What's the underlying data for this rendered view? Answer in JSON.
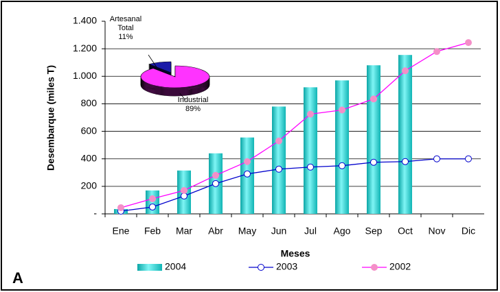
{
  "label": "A",
  "chart_data": [
    {
      "type": "bar",
      "ylabel": "Desembarque (miles T)",
      "xlabel": "Meses",
      "categories": [
        "Ene",
        "Feb",
        "Mar",
        "Abr",
        "May",
        "Jun",
        "Jul",
        "Ago",
        "Sep",
        "Oct",
        "Nov",
        "Dic"
      ],
      "series": [
        {
          "name": "2004",
          "type": "bar",
          "color": "#22c8c8",
          "values": [
            35,
            170,
            315,
            440,
            555,
            780,
            920,
            970,
            1080,
            1155,
            null,
            null
          ]
        },
        {
          "name": "2003",
          "type": "line",
          "color": "#0000cc",
          "marker_fill": "#ffffff",
          "values": [
            20,
            50,
            130,
            220,
            290,
            325,
            340,
            350,
            375,
            380,
            400,
            400
          ]
        },
        {
          "name": "2002",
          "type": "line",
          "color": "#ff00ff",
          "marker_fill": "#f48fc8",
          "values": [
            45,
            110,
            170,
            280,
            380,
            530,
            725,
            755,
            835,
            1040,
            1180,
            1245
          ]
        }
      ],
      "ylim": [
        0,
        1400
      ],
      "yticks": [
        {
          "value": 0,
          "label": "-"
        },
        200,
        400,
        600,
        800,
        {
          "value": 1000,
          "label": "1.000"
        },
        {
          "value": 1200,
          "label": "1.200"
        },
        {
          "value": 1400,
          "label": "1.400"
        }
      ],
      "grid": true,
      "legend": "bottom"
    },
    {
      "type": "pie",
      "categories": [
        "Artesanal Total",
        "Industrial"
      ],
      "values": [
        11,
        89
      ],
      "value_labels": [
        "11%",
        "89%"
      ],
      "colors": [
        "#1a1aa8",
        "#ff33ff"
      ]
    }
  ]
}
